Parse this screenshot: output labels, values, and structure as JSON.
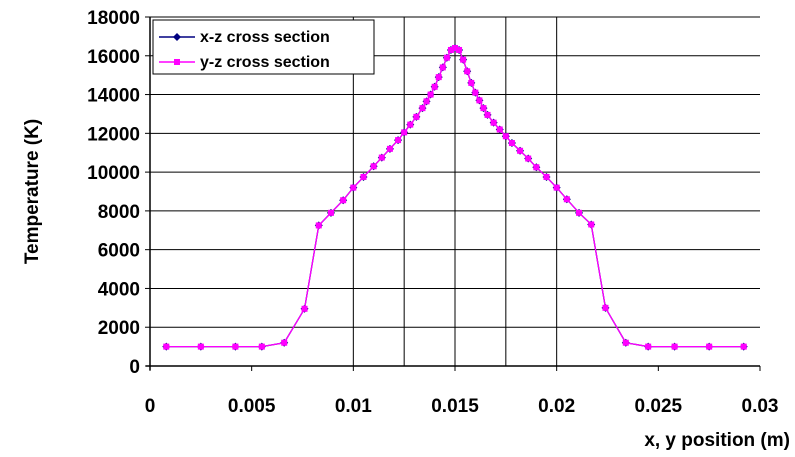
{
  "chart_data": {
    "type": "line",
    "title": "",
    "xlabel": "x, y position (m)",
    "ylabel": "Temperature (K)",
    "xlim": [
      0,
      0.03
    ],
    "ylim": [
      0,
      18000
    ],
    "xticks": [
      0,
      0.005,
      0.01,
      0.015,
      0.02,
      0.025,
      0.03
    ],
    "xtick_labels": [
      "0",
      "0.005",
      "0.01",
      "0.015",
      "0.02",
      "0.025",
      "0.03"
    ],
    "yticks": [
      0,
      2000,
      4000,
      6000,
      8000,
      10000,
      12000,
      14000,
      16000,
      18000
    ],
    "ytick_labels": [
      "0",
      "2000",
      "4000",
      "6000",
      "8000",
      "10000",
      "12000",
      "14000",
      "16000",
      "18000"
    ],
    "vertical_gridlines_x": [
      0.01,
      0.0125,
      0.015,
      0.0175,
      0.02
    ],
    "legend_position": "top-left",
    "series": [
      {
        "name": "x-z cross section",
        "color": "#000080",
        "marker": "diamond",
        "x": [
          0.0008,
          0.0025,
          0.0042,
          0.0055,
          0.0066,
          0.0076,
          0.0083,
          0.0089,
          0.0095,
          0.01,
          0.0105,
          0.011,
          0.0114,
          0.0118,
          0.0122,
          0.0125,
          0.0128,
          0.0131,
          0.0134,
          0.0136,
          0.0138,
          0.014,
          0.0142,
          0.0144,
          0.0146,
          0.0148,
          0.015,
          0.0152,
          0.0154,
          0.0156,
          0.0158,
          0.016,
          0.0162,
          0.0164,
          0.0166,
          0.0169,
          0.0172,
          0.0175,
          0.0178,
          0.0182,
          0.0186,
          0.019,
          0.0195,
          0.02,
          0.0205,
          0.0211,
          0.0217,
          0.0224,
          0.0234,
          0.0245,
          0.0258,
          0.0275,
          0.0292
        ],
        "y": [
          1000,
          1000,
          1000,
          1000,
          1200,
          2950,
          7250,
          7900,
          8550,
          9200,
          9750,
          10300,
          10750,
          11200,
          11650,
          12050,
          12450,
          12850,
          13300,
          13650,
          14000,
          14400,
          14900,
          15400,
          15900,
          16300,
          16400,
          16300,
          15800,
          15200,
          14600,
          14100,
          13700,
          13300,
          12950,
          12550,
          12200,
          11850,
          11500,
          11100,
          10700,
          10250,
          9750,
          9200,
          8600,
          7900,
          7300,
          3000,
          1200,
          1000,
          1000,
          1000,
          1000
        ]
      },
      {
        "name": "y-z cross section",
        "color": "#ff00ff",
        "marker": "square",
        "x": [
          0.0008,
          0.0025,
          0.0042,
          0.0055,
          0.0066,
          0.0076,
          0.0083,
          0.0089,
          0.0095,
          0.01,
          0.0105,
          0.011,
          0.0114,
          0.0118,
          0.0122,
          0.0125,
          0.0128,
          0.0131,
          0.0134,
          0.0136,
          0.0138,
          0.014,
          0.0142,
          0.0144,
          0.0146,
          0.0148,
          0.015,
          0.0152,
          0.0154,
          0.0156,
          0.0158,
          0.016,
          0.0162,
          0.0164,
          0.0166,
          0.0169,
          0.0172,
          0.0175,
          0.0178,
          0.0182,
          0.0186,
          0.019,
          0.0195,
          0.02,
          0.0205,
          0.0211,
          0.0217,
          0.0224,
          0.0234,
          0.0245,
          0.0258,
          0.0275,
          0.0292
        ],
        "y": [
          1000,
          1000,
          1000,
          1000,
          1200,
          2950,
          7250,
          7900,
          8550,
          9200,
          9750,
          10300,
          10750,
          11200,
          11650,
          12050,
          12450,
          12850,
          13300,
          13650,
          14000,
          14400,
          14900,
          15400,
          15900,
          16300,
          16400,
          16300,
          15800,
          15200,
          14600,
          14100,
          13700,
          13300,
          12950,
          12550,
          12200,
          11850,
          11500,
          11100,
          10700,
          10250,
          9750,
          9200,
          8600,
          7900,
          7300,
          3000,
          1200,
          1000,
          1000,
          1000,
          1000
        ]
      }
    ]
  }
}
